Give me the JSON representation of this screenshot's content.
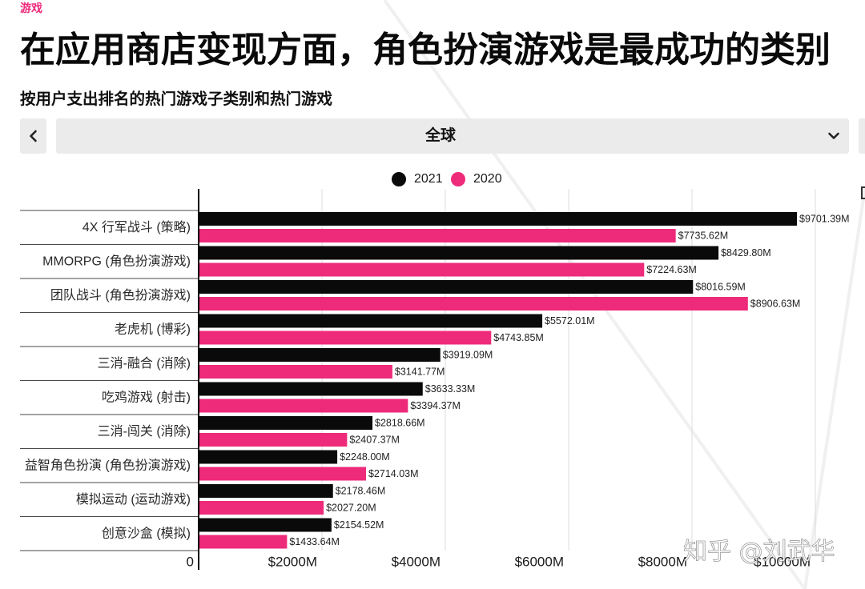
{
  "header": {
    "category_tag": "游戏"
  },
  "controls": {
    "prev_icon": "chevron-left-icon",
    "region_select": {
      "selected": "全球",
      "icon": "chevron-down-icon"
    }
  },
  "colors": {
    "accent": "#ee2a7b",
    "control_bg": "#ebebeb"
  },
  "chart_data": {
    "type": "bar",
    "orientation": "horizontal",
    "title": "在应用商店变现方面，角色扮演游戏是最成功的类别",
    "subtitle": "按用户支出排名的热门游戏子类别和热门游戏",
    "categories": [
      "4X 行军战斗 (策略)",
      "MMORPG (角色扮演游戏)",
      "团队战斗 (角色扮演游戏)",
      "老虎机 (博彩)",
      "三消-融合 (消除)",
      "吃鸡游戏 (射击)",
      "三消-闯关 (消除)",
      "益智角色扮演 (角色扮演游戏)",
      "模拟运动 (运动游戏)",
      "创意沙盒 (模拟)"
    ],
    "series": [
      {
        "name": "2021",
        "color": "#0a0a0a",
        "values": [
          9701.39,
          8429.8,
          8016.59,
          5572.01,
          3919.09,
          3633.33,
          2818.66,
          2248.0,
          2178.46,
          2154.52
        ],
        "labels": [
          "$9701.39M",
          "$8429.80M",
          "$8016.59M",
          "$5572.01M",
          "$3919.09M",
          "$3633.33M",
          "$2818.66M",
          "$2248.00M",
          "$2178.46M",
          "$2154.52M"
        ]
      },
      {
        "name": "2020",
        "color": "#ee2a7b",
        "values": [
          7735.62,
          7224.63,
          8906.63,
          4743.85,
          3141.77,
          3394.37,
          2407.37,
          2714.03,
          2027.2,
          1433.64
        ],
        "labels": [
          "$7735.62M",
          "$7224.63M",
          "$8906.63M",
          "$4743.85M",
          "$3141.77M",
          "$3394.37M",
          "$2407.37M",
          "$2714.03M",
          "$2027.20M",
          "$1433.64M"
        ]
      }
    ],
    "xticks": [
      0,
      2000,
      4000,
      6000,
      8000,
      10000
    ],
    "xtick_labels": [
      "0",
      "$2000M",
      "$4000M",
      "$6000M",
      "$8000M",
      "$10000M"
    ],
    "xlim": [
      0,
      10000
    ],
    "grid": true,
    "legend": "top-center"
  },
  "watermark": {
    "text": "知乎 @刘武华"
  }
}
